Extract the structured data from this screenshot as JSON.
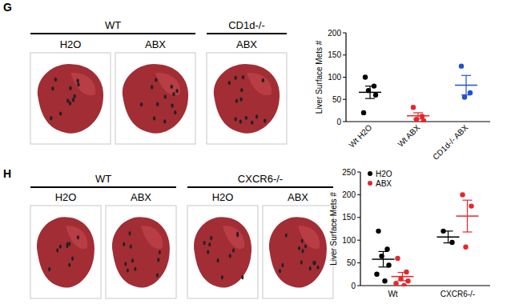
{
  "panels": [
    {
      "label": "G",
      "groups": [
        {
          "title": "WT",
          "images": [
            "H2O",
            "ABX"
          ]
        },
        {
          "title": "CD1d-/-",
          "images": [
            "ABX"
          ]
        }
      ]
    },
    {
      "label": "H",
      "groups": [
        {
          "title": "WT",
          "images": [
            "H2O",
            "ABX"
          ]
        },
        {
          "title": "CXCR6-/-",
          "images": [
            "H2O",
            "ABX"
          ]
        }
      ]
    }
  ],
  "chart_data": [
    {
      "type": "scatter",
      "ylabel": "Liver Surface Mets #",
      "categories": [
        "Wt H2O",
        "Wt ABX",
        "CD1d-/- ABX"
      ],
      "values": [
        [
          100,
          80,
          70,
          60,
          20
        ],
        [
          32,
          12,
          5,
          2
        ],
        [
          125,
          65,
          55
        ]
      ],
      "means": [
        66,
        13,
        82
      ],
      "errors": [
        14,
        7,
        22
      ],
      "colors": [
        "#000000",
        "#e8262b",
        "#1f50d6"
      ],
      "ylim": [
        0,
        200
      ],
      "yticks": [
        0,
        50,
        100,
        150,
        200
      ]
    },
    {
      "type": "scatter",
      "ylabel": "Liver Surface Mets #",
      "categories": [
        "Wt",
        "CXCR6-/-"
      ],
      "legend": "upper-left",
      "series": [
        {
          "name": "H2O",
          "color": "#000000",
          "values": [
            [
              120,
              80,
              65,
              45,
              25,
              10
            ],
            [
              120,
              95
            ]
          ],
          "means": [
            58,
            107
          ],
          "errors": [
            17,
            13
          ]
        },
        {
          "name": "ABX",
          "color": "#e8262b",
          "values": [
            [
              60,
              30,
              15,
              10,
              5,
              0
            ],
            [
              200,
              175,
              85
            ]
          ],
          "means": [
            20,
            153
          ],
          "errors": [
            9,
            35
          ]
        }
      ],
      "ylim": [
        0,
        250
      ],
      "yticks": [
        0,
        50,
        100,
        150,
        200,
        250
      ]
    }
  ]
}
